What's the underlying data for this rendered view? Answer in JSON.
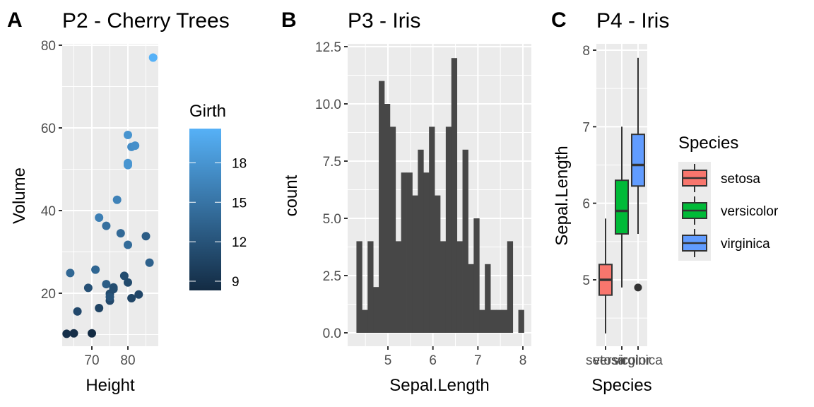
{
  "chart_data": [
    {
      "panel_tag": "A",
      "type": "scatter",
      "title": "P2 - Cherry Trees",
      "xlabel": "Height",
      "ylabel": "Volume",
      "xlim": [
        62,
        88
      ],
      "ylim": [
        7,
        80
      ],
      "xticks": [
        70,
        80
      ],
      "yticks": [
        20,
        40,
        60,
        80
      ],
      "grid": true,
      "color_legend": {
        "title": "Girth",
        "ticks": [
          9,
          12,
          15,
          18
        ],
        "range": [
          8.3,
          20.6
        ],
        "low_color": "#132B43",
        "high_color": "#56B1F7",
        "placement": "right"
      },
      "points": [
        {
          "x": 70,
          "y": 10.3,
          "girth": 8.3
        },
        {
          "x": 65,
          "y": 10.3,
          "girth": 8.6
        },
        {
          "x": 63,
          "y": 10.2,
          "girth": 8.8
        },
        {
          "x": 72,
          "y": 16.4,
          "girth": 10.5
        },
        {
          "x": 81,
          "y": 18.8,
          "girth": 10.7
        },
        {
          "x": 83,
          "y": 19.7,
          "girth": 10.8
        },
        {
          "x": 66,
          "y": 15.6,
          "girth": 11.0
        },
        {
          "x": 75,
          "y": 18.2,
          "girth": 11.0
        },
        {
          "x": 80,
          "y": 22.6,
          "girth": 11.1
        },
        {
          "x": 75,
          "y": 19.9,
          "girth": 11.2
        },
        {
          "x": 79,
          "y": 24.2,
          "girth": 11.3
        },
        {
          "x": 76,
          "y": 21.0,
          "girth": 11.4
        },
        {
          "x": 76,
          "y": 21.4,
          "girth": 11.4
        },
        {
          "x": 69,
          "y": 21.3,
          "girth": 11.7
        },
        {
          "x": 75,
          "y": 19.1,
          "girth": 12.0
        },
        {
          "x": 74,
          "y": 22.2,
          "girth": 12.9
        },
        {
          "x": 85,
          "y": 33.8,
          "girth": 12.9
        },
        {
          "x": 86,
          "y": 27.4,
          "girth": 13.3
        },
        {
          "x": 71,
          "y": 25.7,
          "girth": 13.7
        },
        {
          "x": 64,
          "y": 24.9,
          "girth": 13.8
        },
        {
          "x": 78,
          "y": 34.5,
          "girth": 14.0
        },
        {
          "x": 80,
          "y": 31.7,
          "girth": 14.2
        },
        {
          "x": 74,
          "y": 36.3,
          "girth": 14.5
        },
        {
          "x": 72,
          "y": 38.3,
          "girth": 16.0
        },
        {
          "x": 77,
          "y": 42.6,
          "girth": 16.3
        },
        {
          "x": 81,
          "y": 55.4,
          "girth": 17.3
        },
        {
          "x": 82,
          "y": 55.7,
          "girth": 17.5
        },
        {
          "x": 80,
          "y": 58.3,
          "girth": 17.9
        },
        {
          "x": 80,
          "y": 51.5,
          "girth": 18.0
        },
        {
          "x": 80,
          "y": 51.0,
          "girth": 18.0
        },
        {
          "x": 87,
          "y": 77.0,
          "girth": 20.6
        }
      ]
    },
    {
      "panel_tag": "B",
      "type": "bar",
      "subtype": "histogram",
      "title": "P3 - Iris",
      "xlabel": "Sepal.Length",
      "ylabel": "count",
      "xlim": [
        4.12,
        8.18
      ],
      "ylim": [
        -0.6,
        12.6
      ],
      "xticks": [
        5,
        6,
        7,
        8
      ],
      "yticks": [
        "0.0",
        "2.5",
        "5.0",
        "7.5",
        "10.0",
        "12.5"
      ],
      "ytick_values": [
        0,
        2.5,
        5,
        7.5,
        10,
        12.5
      ],
      "grid": true,
      "bar_color": "#474747",
      "bin_start": 4.3,
      "bin_width": 0.1241,
      "counts": [
        4,
        1,
        4,
        2,
        11,
        10,
        9,
        4,
        7,
        7,
        6,
        8,
        7,
        9,
        6,
        4,
        9,
        12,
        4,
        8,
        3,
        5,
        1,
        3,
        1,
        1,
        1,
        4,
        0,
        1
      ]
    },
    {
      "panel_tag": "C",
      "type": "box",
      "title": "P4 - Iris",
      "xlabel": "Species",
      "ylabel": "Sepal.Length",
      "ylim": [
        4.2,
        8.05
      ],
      "yticks": [
        5,
        6,
        7,
        8
      ],
      "categories": [
        "setosa",
        "versicolor",
        "virginica"
      ],
      "grid": true,
      "legend": {
        "title": "Species",
        "placement": "right",
        "entries": [
          "setosa",
          "versicolor",
          "virginica"
        ]
      },
      "boxes": [
        {
          "name": "setosa",
          "color": "#F8766D",
          "min": 4.3,
          "q1": 4.8,
          "median": 5.0,
          "q3": 5.2,
          "max": 5.8,
          "outliers": []
        },
        {
          "name": "versicolor",
          "color": "#00BA38",
          "min": 4.9,
          "q1": 5.6,
          "median": 5.9,
          "q3": 6.3,
          "max": 7.0,
          "outliers": []
        },
        {
          "name": "virginica",
          "color": "#619CFF",
          "min": 5.6,
          "q1": 6.225,
          "median": 6.5,
          "q3": 6.9,
          "max": 7.9,
          "outliers": [
            4.9
          ]
        }
      ]
    }
  ]
}
